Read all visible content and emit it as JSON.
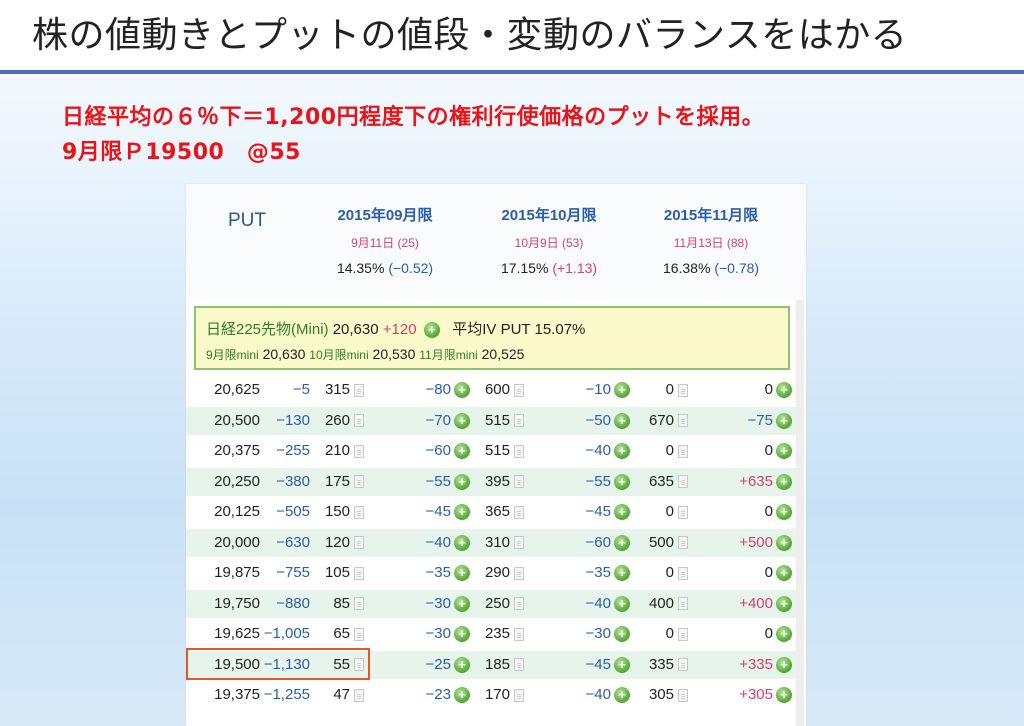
{
  "slide": {
    "title": "株の値動きとプットの値段・変動のバランスをはかる",
    "headline_line1": "日経平均の６％下＝1,200円程度下の権利行使価格のプットを採用。",
    "headline_line2": "9月限Ｐ19500　@55"
  },
  "table": {
    "put_label": "PUT",
    "months": [
      {
        "label": "2015年09月限",
        "date": "9月11日 (25)",
        "iv": "14.35%",
        "iv_change": "(−0.52)",
        "iv_sign": "neg"
      },
      {
        "label": "2015年10月限",
        "date": "10月9日 (53)",
        "iv": "17.15%",
        "iv_change": "(+1.13)",
        "iv_sign": "pos"
      },
      {
        "label": "2015年11月限",
        "date": "11月13日 (88)",
        "iv": "16.38%",
        "iv_change": "(−0.78)",
        "iv_sign": "neg"
      }
    ],
    "futures": {
      "label": "日経225先物(Mini)",
      "price": "20,630",
      "change": "+120",
      "avg_iv_label": "平均IV PUT",
      "avg_iv": "15.07%",
      "m1_label": "9月限mini",
      "m1_price": "20,630",
      "m2_label": "10月限mini",
      "m2_price": "20,530",
      "m3_label": "11月限mini",
      "m3_price": "20,525"
    },
    "rows": [
      {
        "strike": "20,625",
        "diff": "−5",
        "p1": "315",
        "c1": "−80",
        "p2": "600",
        "c2": "−10",
        "p3": "0",
        "c3": "0"
      },
      {
        "strike": "20,500",
        "diff": "−130",
        "p1": "260",
        "c1": "−70",
        "p2": "515",
        "c2": "−50",
        "p3": "670",
        "c3": "−75"
      },
      {
        "strike": "20,375",
        "diff": "−255",
        "p1": "210",
        "c1": "−60",
        "p2": "515",
        "c2": "−40",
        "p3": "0",
        "c3": "0"
      },
      {
        "strike": "20,250",
        "diff": "−380",
        "p1": "175",
        "c1": "−55",
        "p2": "395",
        "c2": "−55",
        "p3": "635",
        "c3": "+635"
      },
      {
        "strike": "20,125",
        "diff": "−505",
        "p1": "150",
        "c1": "−45",
        "p2": "365",
        "c2": "−45",
        "p3": "0",
        "c3": "0"
      },
      {
        "strike": "20,000",
        "diff": "−630",
        "p1": "120",
        "c1": "−40",
        "p2": "310",
        "c2": "−60",
        "p3": "500",
        "c3": "+500"
      },
      {
        "strike": "19,875",
        "diff": "−755",
        "p1": "105",
        "c1": "−35",
        "p2": "290",
        "c2": "−35",
        "p3": "0",
        "c3": "0"
      },
      {
        "strike": "19,750",
        "diff": "−880",
        "p1": "85",
        "c1": "−30",
        "p2": "250",
        "c2": "−40",
        "p3": "400",
        "c3": "+400"
      },
      {
        "strike": "19,625",
        "diff": "−1,005",
        "p1": "65",
        "c1": "−30",
        "p2": "235",
        "c2": "−30",
        "p3": "0",
        "c3": "0"
      },
      {
        "strike": "19,500",
        "diff": "−1,130",
        "p1": "55",
        "c1": "−25",
        "p2": "185",
        "c2": "−45",
        "p3": "335",
        "c3": "+335"
      },
      {
        "strike": "19,375",
        "diff": "−1,255",
        "p1": "47",
        "c1": "−23",
        "p2": "170",
        "c2": "−40",
        "p3": "305",
        "c3": "+305"
      }
    ]
  }
}
